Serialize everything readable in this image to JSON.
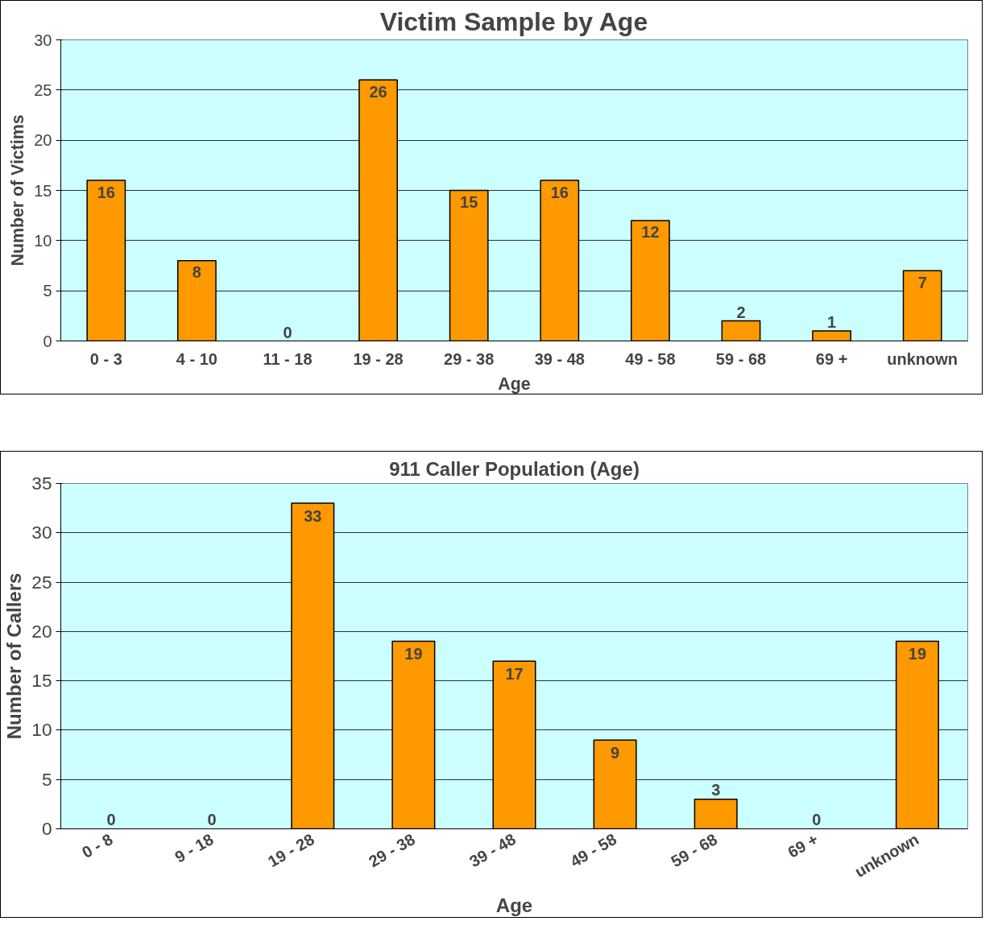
{
  "chart_data": [
    {
      "type": "bar",
      "title": "Victim Sample by Age",
      "xlabel": "Age",
      "ylabel": "Number of Victims",
      "categories": [
        "0 - 3",
        "4 - 10",
        "11 - 18",
        "19 - 28",
        "29 - 38",
        "39 - 48",
        "49 - 58",
        "59 - 68",
        "69 +",
        "unknown"
      ],
      "values": [
        16,
        8,
        0,
        26,
        15,
        16,
        12,
        2,
        1,
        7
      ],
      "color": "#ff9900",
      "ylim": [
        0,
        30
      ],
      "yticks": [
        0,
        5,
        10,
        15,
        20,
        25,
        30
      ],
      "grid": "y",
      "data_labels": true
    },
    {
      "type": "bar",
      "title": "911 Caller Population (Age)",
      "xlabel": "Age",
      "ylabel": "Number of Callers",
      "categories": [
        "0 - 8",
        "9 - 18",
        "19 - 28",
        "29 - 38",
        "39 - 48",
        "49 - 58",
        "59 - 68",
        "69 +",
        "unknown"
      ],
      "values": [
        0,
        0,
        33,
        19,
        17,
        9,
        3,
        0,
        19
      ],
      "color": "#ff9900",
      "ylim": [
        0,
        35
      ],
      "yticks": [
        0,
        5,
        10,
        15,
        20,
        25,
        30,
        35
      ],
      "grid": "y",
      "data_labels": true
    }
  ]
}
